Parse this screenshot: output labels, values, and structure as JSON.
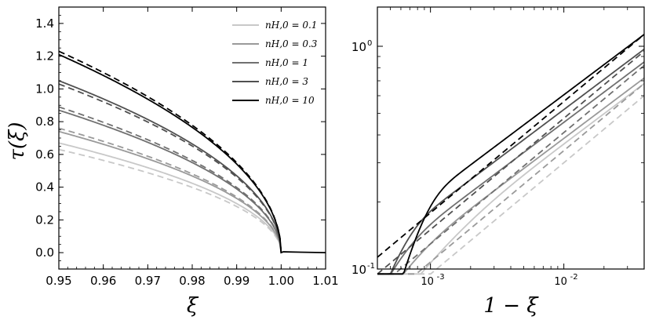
{
  "chart_data": [
    {
      "type": "line",
      "panel": "left",
      "xlabel": "ξ",
      "ylabel": "τ(ξ)",
      "xlim": [
        0.95,
        1.01
      ],
      "ylim": [
        -0.1,
        1.5
      ],
      "x_ticks": [
        "0.95",
        "0.96",
        "0.97",
        "0.98",
        "0.99",
        "1.00",
        "1.01"
      ],
      "x_tick_values": [
        0.95,
        0.96,
        0.97,
        0.98,
        0.99,
        1.0,
        1.01
      ],
      "y_ticks": [
        "0.0",
        "0.2",
        "0.4",
        "0.6",
        "0.8",
        "1.0",
        "1.2",
        "1.4"
      ],
      "y_tick_values": [
        0.0,
        0.2,
        0.4,
        0.6,
        0.8,
        1.0,
        1.2,
        1.4
      ],
      "legend_position": "top-right",
      "series": [
        {
          "name": "n_H,0 = 0.1",
          "label": "nH,0 = 0.1",
          "color": "#c8c8c8",
          "solid_amplitude": 0.67,
          "dashed_amplitude": 0.63
        },
        {
          "name": "n_H,0 = 0.3",
          "label": "nH,0 = 0.3",
          "color": "#9a9a9a",
          "solid_amplitude": 0.74,
          "dashed_amplitude": 0.76
        },
        {
          "name": "n_H,0 = 1",
          "label": "nH,0 = 1",
          "color": "#707070",
          "solid_amplitude": 0.87,
          "dashed_amplitude": 0.89
        },
        {
          "name": "n_H,0 = 3",
          "label": "nH,0 = 3",
          "color": "#505050",
          "solid_amplitude": 1.05,
          "dashed_amplitude": 1.03
        },
        {
          "name": "n_H,0 = 10",
          "label": "nH,0 = 10",
          "color": "#000000",
          "solid_amplitude": 1.21,
          "dashed_amplitude": 1.23
        }
      ]
    },
    {
      "type": "line",
      "panel": "right",
      "xlabel": "1 − ξ",
      "scale": "log-log",
      "xlim": [
        0.0004,
        0.04
      ],
      "ylim": [
        0.1,
        1.5
      ],
      "x_ticks": [
        "10",
        "10"
      ],
      "x_tick_exponents": [
        "-3",
        "-2"
      ],
      "x_tick_values": [
        0.001,
        0.01
      ],
      "y_ticks": [
        "10",
        "10"
      ],
      "y_tick_exponents": [
        "0",
        "-1"
      ],
      "y_tick_values": [
        1,
        0.1
      ],
      "series": [
        {
          "name": "n_H,0 = 0.1",
          "color": "#c8c8c8",
          "solid_at_xmax": 0.68,
          "dashed_at_xmax": 0.6
        },
        {
          "name": "n_H,0 = 0.3",
          "color": "#9a9a9a",
          "solid_at_xmax": 0.72,
          "dashed_at_xmax": 0.68
        },
        {
          "name": "n_H,0 = 1",
          "color": "#707070",
          "solid_at_xmax": 0.85,
          "dashed_at_xmax": 0.82
        },
        {
          "name": "n_H,0 = 3",
          "color": "#505050",
          "solid_at_xmax": 0.97,
          "dashed_at_xmax": 0.95
        },
        {
          "name": "n_H,0 = 10",
          "color": "#000000",
          "solid_at_xmax": 1.13,
          "dashed_at_xmax": 1.13
        }
      ]
    }
  ]
}
